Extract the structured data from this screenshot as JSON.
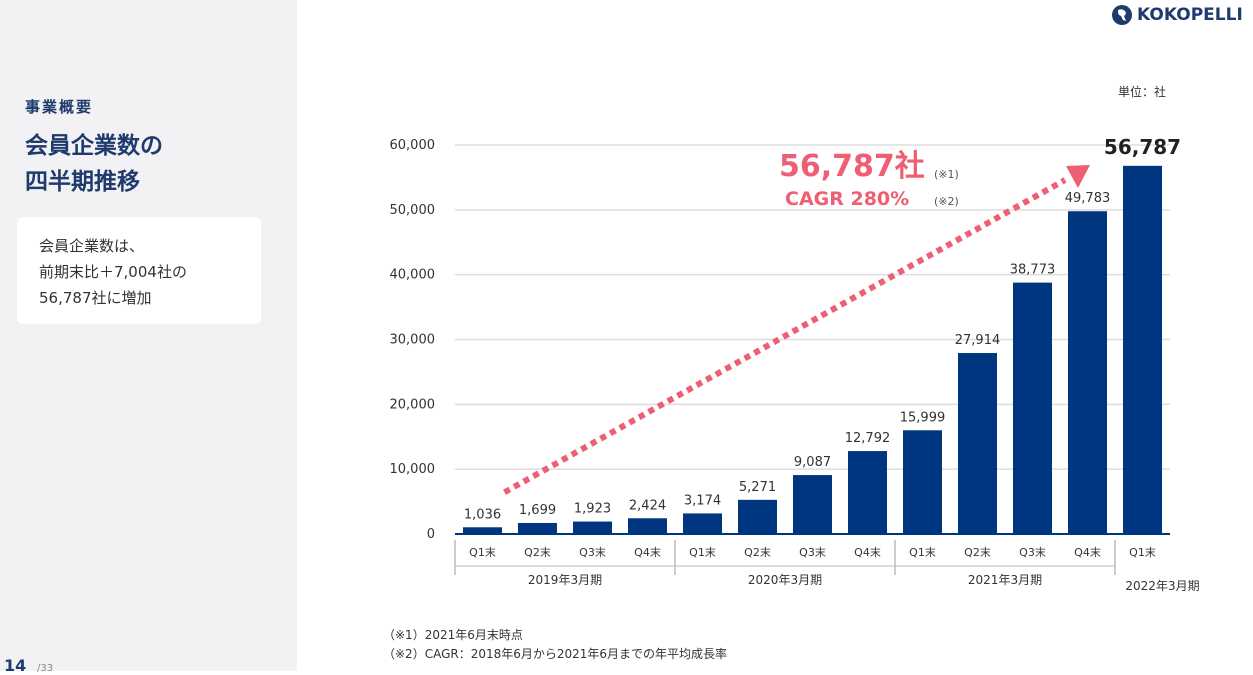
{
  "sidebar": {
    "section_label": "事業概要",
    "heading_line1": "会員企業数の",
    "heading_line2": "四半期推移",
    "summary_line1": "会員企業数は、",
    "summary_line2": "前期末比＋7,004社の",
    "summary_line3": "56,787社に増加",
    "page_number": "14",
    "page_total": "/33"
  },
  "logo": {
    "text": "KOKOPELLI"
  },
  "colors": {
    "bar": "#003580",
    "accent": "#ee5f73",
    "title": "#1f3a6e",
    "grid": "#dddddd"
  },
  "chart_data": {
    "type": "bar",
    "unit_label": "単位：社",
    "categories": [
      "Q1末",
      "Q2末",
      "Q3末",
      "Q4末",
      "Q1末",
      "Q2末",
      "Q3末",
      "Q4末",
      "Q1末",
      "Q2末",
      "Q3末",
      "Q4末",
      "Q1末"
    ],
    "values": [
      1036,
      1699,
      1923,
      2424,
      3174,
      5271,
      9087,
      12792,
      15999,
      27914,
      38773,
      49783,
      56787
    ],
    "value_labels": [
      "1,036",
      "1,699",
      "1,923",
      "2,424",
      "3,174",
      "5,271",
      "9,087",
      "12,792",
      "15,999",
      "27,914",
      "38,773",
      "49,783",
      "56,787"
    ],
    "groups": [
      {
        "label": "2019年3月期",
        "count": 4
      },
      {
        "label": "2020年3月期",
        "count": 4
      },
      {
        "label": "2021年3月期",
        "count": 4
      },
      {
        "label": "2022年3月期",
        "count": 1
      }
    ],
    "ylim": [
      0,
      60000
    ],
    "yticks": [
      0,
      10000,
      20000,
      30000,
      40000,
      50000,
      60000
    ],
    "ytick_labels": [
      "0",
      "10,000",
      "20,000",
      "30,000",
      "40,000",
      "50,000",
      "60,000"
    ],
    "grid": true,
    "annotation": {
      "headline": "56,787社",
      "headline_note": "(※1)",
      "cagr": "CAGR 280%",
      "cagr_note": "(※2)"
    }
  },
  "notes": [
    "（※1）2021年6月末時点",
    "（※2）CAGR：2018年6月から2021年6月までの年平均成長率"
  ]
}
